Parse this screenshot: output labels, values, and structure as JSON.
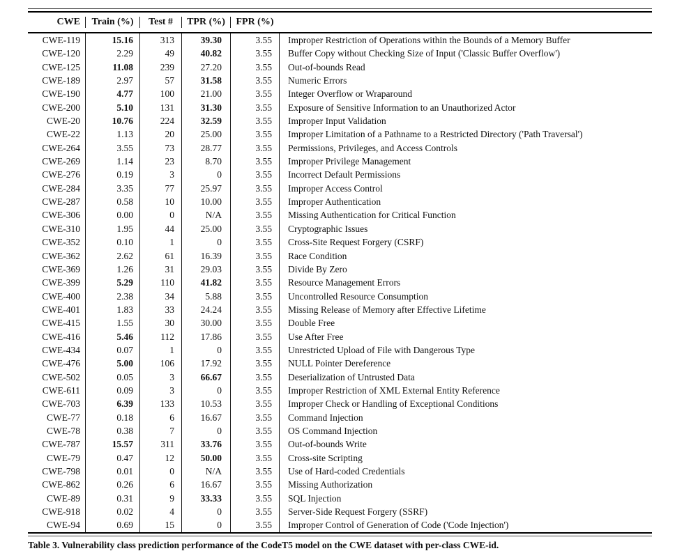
{
  "table": {
    "columns": [
      "CWE",
      "Train (%)",
      "Test #",
      "TPR (%)",
      "FPR (%)",
      ""
    ],
    "caption": "Table 3. Vulnerability class prediction performance of the CodeT5 model on the CWE dataset with per-class CWE-id.",
    "rows": [
      {
        "cwe": "CWE-119",
        "train": "15.16",
        "train_bold": true,
        "test": "313",
        "tpr": "39.30",
        "tpr_bold": true,
        "fpr": "3.55",
        "description": "Improper Restriction of Operations within the Bounds of a Memory Buffer"
      },
      {
        "cwe": "CWE-120",
        "train": "2.29",
        "train_bold": false,
        "test": "49",
        "tpr": "40.82",
        "tpr_bold": true,
        "fpr": "3.55",
        "description": "Buffer Copy without Checking Size of Input ('Classic Buffer Overflow')"
      },
      {
        "cwe": "CWE-125",
        "train": "11.08",
        "train_bold": true,
        "test": "239",
        "tpr": "27.20",
        "tpr_bold": false,
        "fpr": "3.55",
        "description": "Out-of-bounds Read"
      },
      {
        "cwe": "CWE-189",
        "train": "2.97",
        "train_bold": false,
        "test": "57",
        "tpr": "31.58",
        "tpr_bold": true,
        "fpr": "3.55",
        "description": "Numeric Errors"
      },
      {
        "cwe": "CWE-190",
        "train": "4.77",
        "train_bold": true,
        "test": "100",
        "tpr": "21.00",
        "tpr_bold": false,
        "fpr": "3.55",
        "description": "Integer Overflow or Wraparound"
      },
      {
        "cwe": "CWE-200",
        "train": "5.10",
        "train_bold": true,
        "test": "131",
        "tpr": "31.30",
        "tpr_bold": true,
        "fpr": "3.55",
        "description": "Exposure of Sensitive Information to an Unauthorized Actor"
      },
      {
        "cwe": "CWE-20",
        "train": "10.76",
        "train_bold": true,
        "test": "224",
        "tpr": "32.59",
        "tpr_bold": true,
        "fpr": "3.55",
        "description": "Improper Input Validation"
      },
      {
        "cwe": "CWE-22",
        "train": "1.13",
        "train_bold": false,
        "test": "20",
        "tpr": "25.00",
        "tpr_bold": false,
        "fpr": "3.55",
        "description": "Improper Limitation of a Pathname to a Restricted Directory ('Path Traversal')"
      },
      {
        "cwe": "CWE-264",
        "train": "3.55",
        "train_bold": false,
        "test": "73",
        "tpr": "28.77",
        "tpr_bold": false,
        "fpr": "3.55",
        "description": "Permissions, Privileges, and Access Controls"
      },
      {
        "cwe": "CWE-269",
        "train": "1.14",
        "train_bold": false,
        "test": "23",
        "tpr": "8.70",
        "tpr_bold": false,
        "fpr": "3.55",
        "description": "Improper Privilege Management"
      },
      {
        "cwe": "CWE-276",
        "train": "0.19",
        "train_bold": false,
        "test": "3",
        "tpr": "0",
        "tpr_bold": false,
        "fpr": "3.55",
        "description": "Incorrect Default Permissions"
      },
      {
        "cwe": "CWE-284",
        "train": "3.35",
        "train_bold": false,
        "test": "77",
        "tpr": "25.97",
        "tpr_bold": false,
        "fpr": "3.55",
        "description": "Improper Access Control"
      },
      {
        "cwe": "CWE-287",
        "train": "0.58",
        "train_bold": false,
        "test": "10",
        "tpr": "10.00",
        "tpr_bold": false,
        "fpr": "3.55",
        "description": "Improper Authentication"
      },
      {
        "cwe": "CWE-306",
        "train": "0.00",
        "train_bold": false,
        "test": "0",
        "tpr": "N/A",
        "tpr_bold": false,
        "fpr": "3.55",
        "description": "Missing Authentication for Critical Function"
      },
      {
        "cwe": "CWE-310",
        "train": "1.95",
        "train_bold": false,
        "test": "44",
        "tpr": "25.00",
        "tpr_bold": false,
        "fpr": "3.55",
        "description": "Cryptographic Issues"
      },
      {
        "cwe": "CWE-352",
        "train": "0.10",
        "train_bold": false,
        "test": "1",
        "tpr": "0",
        "tpr_bold": false,
        "fpr": "3.55",
        "description": "Cross-Site Request Forgery (CSRF)"
      },
      {
        "cwe": "CWE-362",
        "train": "2.62",
        "train_bold": false,
        "test": "61",
        "tpr": "16.39",
        "tpr_bold": false,
        "fpr": "3.55",
        "description": "Race Condition"
      },
      {
        "cwe": "CWE-369",
        "train": "1.26",
        "train_bold": false,
        "test": "31",
        "tpr": "29.03",
        "tpr_bold": false,
        "fpr": "3.55",
        "description": "Divide By Zero"
      },
      {
        "cwe": "CWE-399",
        "train": "5.29",
        "train_bold": true,
        "test": "110",
        "tpr": "41.82",
        "tpr_bold": true,
        "fpr": "3.55",
        "description": "Resource Management Errors"
      },
      {
        "cwe": "CWE-400",
        "train": "2.38",
        "train_bold": false,
        "test": "34",
        "tpr": "5.88",
        "tpr_bold": false,
        "fpr": "3.55",
        "description": "Uncontrolled Resource Consumption"
      },
      {
        "cwe": "CWE-401",
        "train": "1.83",
        "train_bold": false,
        "test": "33",
        "tpr": "24.24",
        "tpr_bold": false,
        "fpr": "3.55",
        "description": "Missing Release of Memory after Effective Lifetime"
      },
      {
        "cwe": "CWE-415",
        "train": "1.55",
        "train_bold": false,
        "test": "30",
        "tpr": "30.00",
        "tpr_bold": false,
        "fpr": "3.55",
        "description": "Double Free"
      },
      {
        "cwe": "CWE-416",
        "train": "5.46",
        "train_bold": true,
        "test": "112",
        "tpr": "17.86",
        "tpr_bold": false,
        "fpr": "3.55",
        "description": "Use After Free"
      },
      {
        "cwe": "CWE-434",
        "train": "0.07",
        "train_bold": false,
        "test": "1",
        "tpr": "0",
        "tpr_bold": false,
        "fpr": "3.55",
        "description": "Unrestricted Upload of File with Dangerous Type"
      },
      {
        "cwe": "CWE-476",
        "train": "5.00",
        "train_bold": true,
        "test": "106",
        "tpr": "17.92",
        "tpr_bold": false,
        "fpr": "3.55",
        "description": "NULL Pointer Dereference"
      },
      {
        "cwe": "CWE-502",
        "train": "0.05",
        "train_bold": false,
        "test": "3",
        "tpr": "66.67",
        "tpr_bold": true,
        "fpr": "3.55",
        "description": "Deserialization of Untrusted Data"
      },
      {
        "cwe": "CWE-611",
        "train": "0.09",
        "train_bold": false,
        "test": "3",
        "tpr": "0",
        "tpr_bold": false,
        "fpr": "3.55",
        "description": "Improper Restriction of XML External Entity Reference"
      },
      {
        "cwe": "CWE-703",
        "train": "6.39",
        "train_bold": true,
        "test": "133",
        "tpr": "10.53",
        "tpr_bold": false,
        "fpr": "3.55",
        "description": "Improper Check or Handling of Exceptional Conditions"
      },
      {
        "cwe": "CWE-77",
        "train": "0.18",
        "train_bold": false,
        "test": "6",
        "tpr": "16.67",
        "tpr_bold": false,
        "fpr": "3.55",
        "description": "Command Injection"
      },
      {
        "cwe": "CWE-78",
        "train": "0.38",
        "train_bold": false,
        "test": "7",
        "tpr": "0",
        "tpr_bold": false,
        "fpr": "3.55",
        "description": "OS Command Injection"
      },
      {
        "cwe": "CWE-787",
        "train": "15.57",
        "train_bold": true,
        "test": "311",
        "tpr": "33.76",
        "tpr_bold": true,
        "fpr": "3.55",
        "description": "Out-of-bounds Write"
      },
      {
        "cwe": "CWE-79",
        "train": "0.47",
        "train_bold": false,
        "test": "12",
        "tpr": "50.00",
        "tpr_bold": true,
        "fpr": "3.55",
        "description": "Cross-site Scripting"
      },
      {
        "cwe": "CWE-798",
        "train": "0.01",
        "train_bold": false,
        "test": "0",
        "tpr": "N/A",
        "tpr_bold": false,
        "fpr": "3.55",
        "description": "Use of Hard-coded Credentials"
      },
      {
        "cwe": "CWE-862",
        "train": "0.26",
        "train_bold": false,
        "test": "6",
        "tpr": "16.67",
        "tpr_bold": false,
        "fpr": "3.55",
        "description": "Missing Authorization"
      },
      {
        "cwe": "CWE-89",
        "train": "0.31",
        "train_bold": false,
        "test": "9",
        "tpr": "33.33",
        "tpr_bold": true,
        "fpr": "3.55",
        "description": "SQL Injection"
      },
      {
        "cwe": "CWE-918",
        "train": "0.02",
        "train_bold": false,
        "test": "4",
        "tpr": "0",
        "tpr_bold": false,
        "fpr": "3.55",
        "description": "Server-Side Request Forgery (SSRF)"
      },
      {
        "cwe": "CWE-94",
        "train": "0.69",
        "train_bold": false,
        "test": "15",
        "tpr": "0",
        "tpr_bold": false,
        "fpr": "3.55",
        "description": "Improper Control of Generation of Code ('Code Injection')"
      }
    ]
  }
}
